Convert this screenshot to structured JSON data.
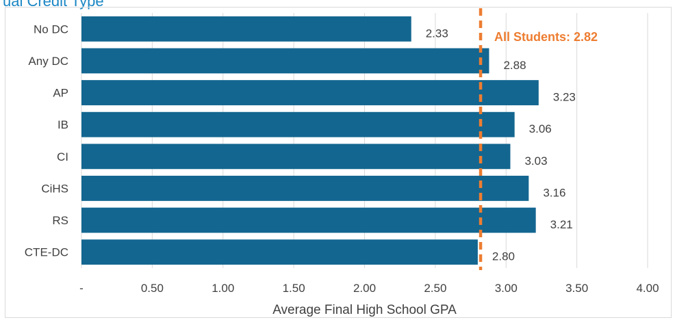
{
  "title": "ual Credit Type",
  "chart_data": {
    "type": "bar",
    "orientation": "horizontal",
    "categories": [
      "No DC",
      "Any DC",
      "AP",
      "IB",
      "CI",
      "CiHS",
      "RS",
      "CTE-DC"
    ],
    "values": [
      2.33,
      2.88,
      3.23,
      3.06,
      3.03,
      3.16,
      3.21,
      2.8
    ],
    "value_labels": [
      "2.33",
      "2.88",
      "3.23",
      "3.06",
      "3.03",
      "3.16",
      "3.21",
      "2.80"
    ],
    "xlabel": "Average Final High School GPA",
    "xlim": [
      0,
      4
    ],
    "xticks": [
      0,
      0.5,
      1,
      1.5,
      2,
      2.5,
      3,
      3.5,
      4
    ],
    "xtick_labels": [
      "-",
      "0.50",
      "1.00",
      "1.50",
      "2.00",
      "2.50",
      "3.00",
      "3.50",
      "4.00"
    ],
    "grid": "vertical",
    "bar_color": "#136690",
    "reference_line": {
      "value": 2.82,
      "label": "All Students: 2.82",
      "color": "#ed7d31",
      "style": "dashed"
    }
  }
}
